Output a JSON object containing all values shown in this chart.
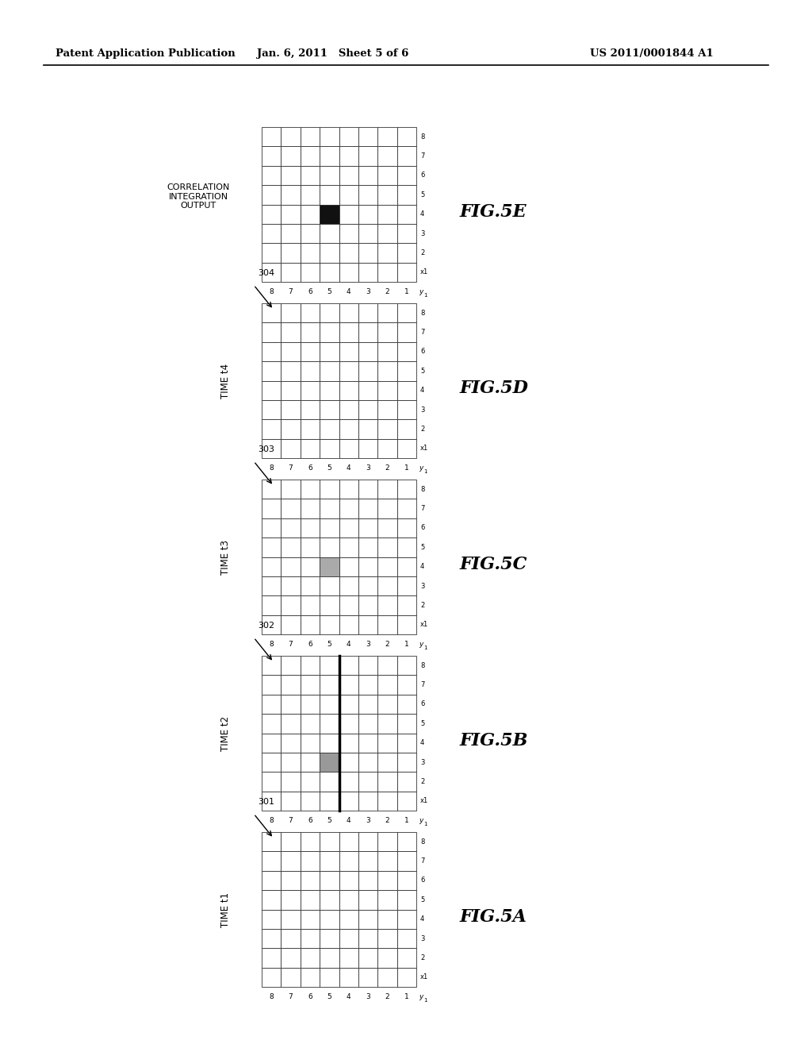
{
  "bg_color": "#ffffff",
  "header_left": "Patent Application Publication",
  "header_mid": "Jan. 6, 2011   Sheet 5 of 6",
  "header_right": "US 2011/0001844 A1",
  "grid_size": 8,
  "grids": [
    {
      "id": "5A",
      "fig_label": "FIG.5A",
      "time_label": "TIME t1",
      "ref_num": "301",
      "highlight_col": null,
      "highlight_row": null,
      "highlight_color": null,
      "extra_label": null,
      "has_thick_line": false
    },
    {
      "id": "5B",
      "fig_label": "FIG.5B",
      "time_label": "TIME t2",
      "ref_num": "302",
      "highlight_col": 4,
      "highlight_row": 3,
      "highlight_color": "#999999",
      "extra_label": null,
      "has_thick_line": true
    },
    {
      "id": "5C",
      "fig_label": "FIG.5C",
      "time_label": "TIME t3",
      "ref_num": "303",
      "highlight_col": 4,
      "highlight_row": 4,
      "highlight_color": "#aaaaaa",
      "extra_label": null,
      "has_thick_line": false
    },
    {
      "id": "5D",
      "fig_label": "FIG.5D",
      "time_label": "TIME t4",
      "ref_num": "304",
      "highlight_col": null,
      "highlight_row": null,
      "highlight_color": null,
      "extra_label": null,
      "has_thick_line": false
    },
    {
      "id": "5E",
      "fig_label": "FIG.5E",
      "time_label": null,
      "ref_num": null,
      "highlight_col": 4,
      "highlight_row": 4,
      "highlight_color": "#111111",
      "extra_label": "CORRELATION\nINTEGRATION\nOUTPUT",
      "has_thick_line": false
    }
  ]
}
